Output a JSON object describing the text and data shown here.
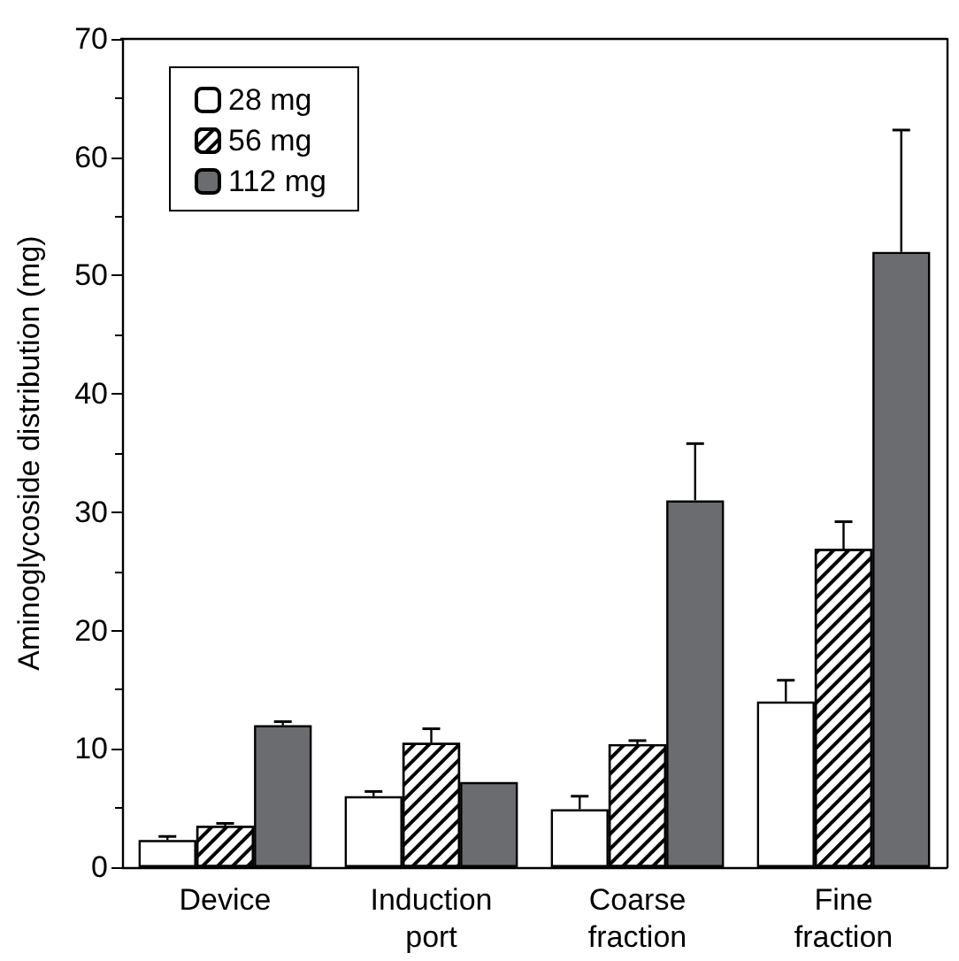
{
  "chart_data": {
    "type": "bar",
    "ylabel": "Aminoglycoside distribution (mg)",
    "categories": [
      "Device",
      "Induction\nport",
      "Coarse\nfraction",
      "Fine\nfraction"
    ],
    "series": [
      {
        "name": "28 mg",
        "color": "#ffffff",
        "values": [
          2.3,
          6.0,
          4.9,
          14.0
        ],
        "errors": [
          [
            2.3,
            2.6
          ],
          [
            6.0,
            6.4
          ],
          [
            4.9,
            6.0
          ],
          [
            14.0,
            15.8
          ]
        ]
      },
      {
        "name": "56 mg",
        "color": "#ffffff",
        "values": [
          3.5,
          10.5,
          10.4,
          26.9
        ],
        "errors": [
          [
            3.5,
            3.7
          ],
          [
            10.5,
            11.7
          ],
          [
            10.4,
            10.7
          ],
          [
            26.9,
            29.2
          ]
        ]
      },
      {
        "name": "112 mg",
        "color": "#6b6c70",
        "values": [
          12.0,
          7.2,
          31.0,
          52.0
        ],
        "errors": [
          [
            12.0,
            12.3
          ],
          null,
          [
            31.0,
            35.8
          ],
          [
            52.0,
            62.3
          ]
        ]
      }
    ],
    "ylim": [
      0,
      70
    ],
    "yticks": [
      0,
      10,
      20,
      30,
      40,
      50,
      60,
      70
    ],
    "grid": false,
    "legend": "top left"
  }
}
